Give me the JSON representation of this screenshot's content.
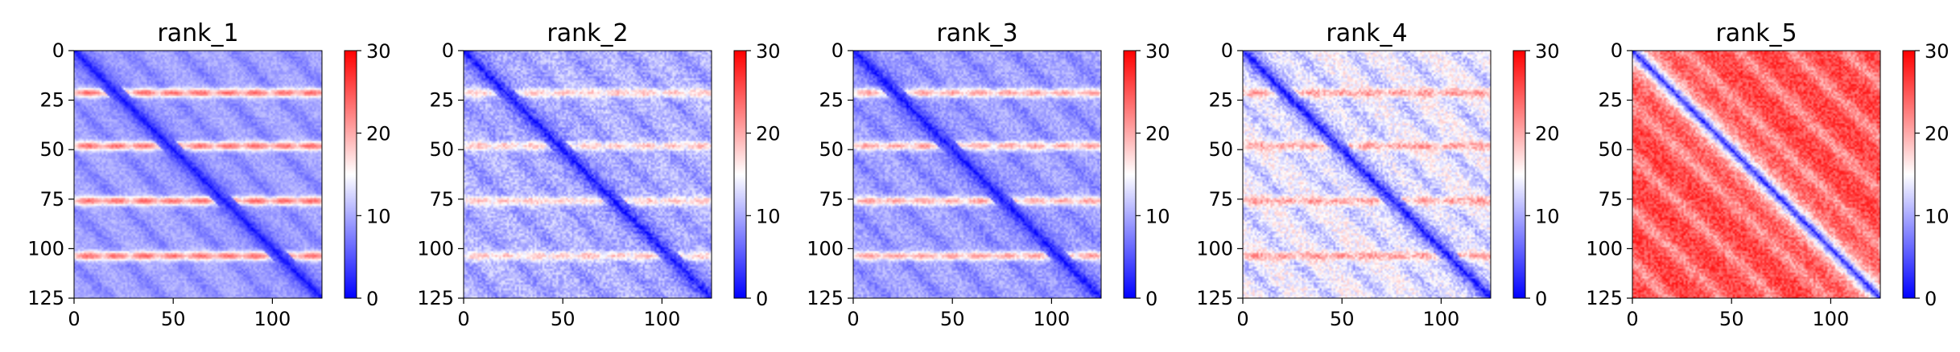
{
  "chart_data": [
    {
      "type": "heatmap",
      "title": "rank_1",
      "matrix_size": 126,
      "x_ticks": [
        0,
        50,
        100
      ],
      "y_ticks": [
        0,
        25,
        50,
        75,
        100,
        125
      ],
      "xlim": [
        0,
        125
      ],
      "ylim": [
        125,
        0
      ],
      "colorbar": {
        "min": 0,
        "max": 30,
        "ticks": [
          0,
          10,
          20,
          30
        ],
        "colormap": "bwr",
        "colors": [
          "#0000ff",
          "#ffffff",
          "#ff0000"
        ]
      },
      "pattern": {
        "diagonal_value": 1,
        "background_value": 10,
        "stripe_rows": [
          21,
          48,
          76,
          104
        ],
        "stripe_value": 24,
        "period": 27,
        "blocks_value": 5,
        "noise": 1.5
      }
    },
    {
      "type": "heatmap",
      "title": "rank_2",
      "matrix_size": 126,
      "x_ticks": [
        0,
        50,
        100
      ],
      "y_ticks": [
        0,
        25,
        50,
        75,
        100,
        125
      ],
      "xlim": [
        0,
        125
      ],
      "ylim": [
        125,
        0
      ],
      "colorbar": {
        "min": 0,
        "max": 30,
        "ticks": [
          0,
          10,
          20,
          30
        ],
        "colormap": "bwr",
        "colors": [
          "#0000ff",
          "#ffffff",
          "#ff0000"
        ]
      },
      "pattern": {
        "diagonal_value": 1,
        "background_value": 11,
        "stripe_rows": [
          21,
          48,
          76,
          104
        ],
        "stripe_value": 19,
        "period": 27,
        "blocks_value": 6,
        "noise": 2.5
      }
    },
    {
      "type": "heatmap",
      "title": "rank_3",
      "matrix_size": 126,
      "x_ticks": [
        0,
        50,
        100
      ],
      "y_ticks": [
        0,
        25,
        50,
        75,
        100,
        125
      ],
      "xlim": [
        0,
        125
      ],
      "ylim": [
        125,
        0
      ],
      "colorbar": {
        "min": 0,
        "max": 30,
        "ticks": [
          0,
          10,
          20,
          30
        ],
        "colormap": "bwr",
        "colors": [
          "#0000ff",
          "#ffffff",
          "#ff0000"
        ]
      },
      "pattern": {
        "diagonal_value": 1,
        "background_value": 10,
        "stripe_rows": [
          21,
          48,
          76,
          104
        ],
        "stripe_value": 21,
        "period": 27,
        "blocks_value": 5,
        "noise": 2
      }
    },
    {
      "type": "heatmap",
      "title": "rank_4",
      "matrix_size": 126,
      "x_ticks": [
        0,
        50,
        100
      ],
      "y_ticks": [
        0,
        25,
        50,
        75,
        100,
        125
      ],
      "xlim": [
        0,
        125
      ],
      "ylim": [
        125,
        0
      ],
      "colorbar": {
        "min": 0,
        "max": 30,
        "ticks": [
          0,
          10,
          20,
          30
        ],
        "colormap": "bwr",
        "colors": [
          "#0000ff",
          "#ffffff",
          "#ff0000"
        ]
      },
      "pattern": {
        "diagonal_value": 1,
        "background_value": 15,
        "stripe_rows": [
          21,
          48,
          76,
          104
        ],
        "stripe_value": 21,
        "period": 27,
        "blocks_value": 7,
        "noise": 3
      }
    },
    {
      "type": "heatmap",
      "title": "rank_5",
      "matrix_size": 126,
      "x_ticks": [
        0,
        50,
        100
      ],
      "y_ticks": [
        0,
        25,
        50,
        75,
        100,
        125
      ],
      "xlim": [
        0,
        125
      ],
      "ylim": [
        125,
        0
      ],
      "colorbar": {
        "min": 0,
        "max": 30,
        "ticks": [
          0,
          10,
          20,
          30
        ],
        "colormap": "bwr",
        "colors": [
          "#0000ff",
          "#ffffff",
          "#ff0000"
        ]
      },
      "pattern": {
        "diagonal_value": 2,
        "background_value": 26,
        "stripe_rows": [],
        "stripe_value": 26,
        "period": 27,
        "blocks_value": 16,
        "noise": 3
      }
    }
  ]
}
